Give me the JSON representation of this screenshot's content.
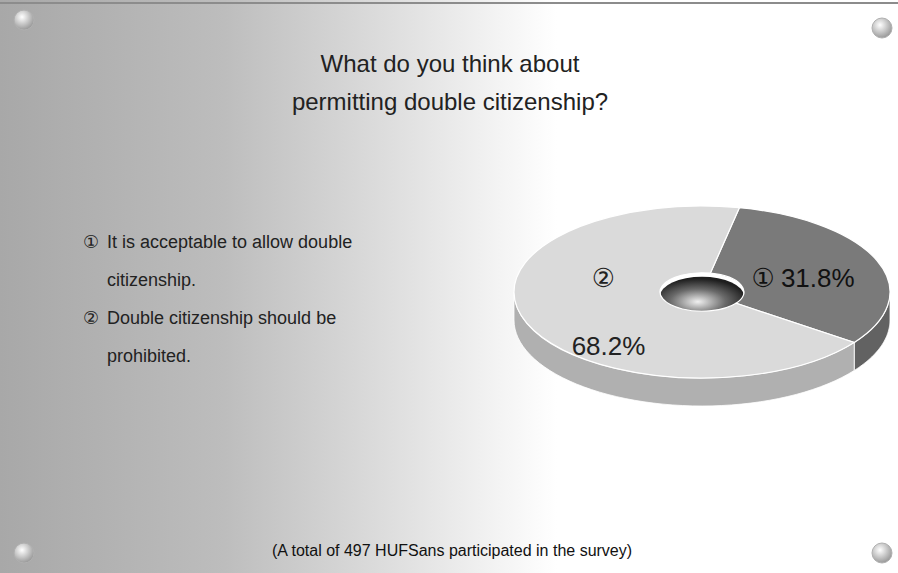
{
  "chart_data": {
    "type": "pie",
    "title": "What do you think about permitting double citizenship?",
    "categories": [
      "It is acceptable to allow double citizenship.",
      "Double citizenship should be prohibited."
    ],
    "category_marks": [
      "①",
      "②"
    ],
    "values": [
      31.8,
      68.2
    ],
    "value_labels": [
      "31.8%",
      "68.2%"
    ],
    "colors": [
      "#7a7a7a",
      "#dadada"
    ],
    "data_labels": true,
    "note": "(A total of 497 HUFSans participated in the survey)"
  }
}
